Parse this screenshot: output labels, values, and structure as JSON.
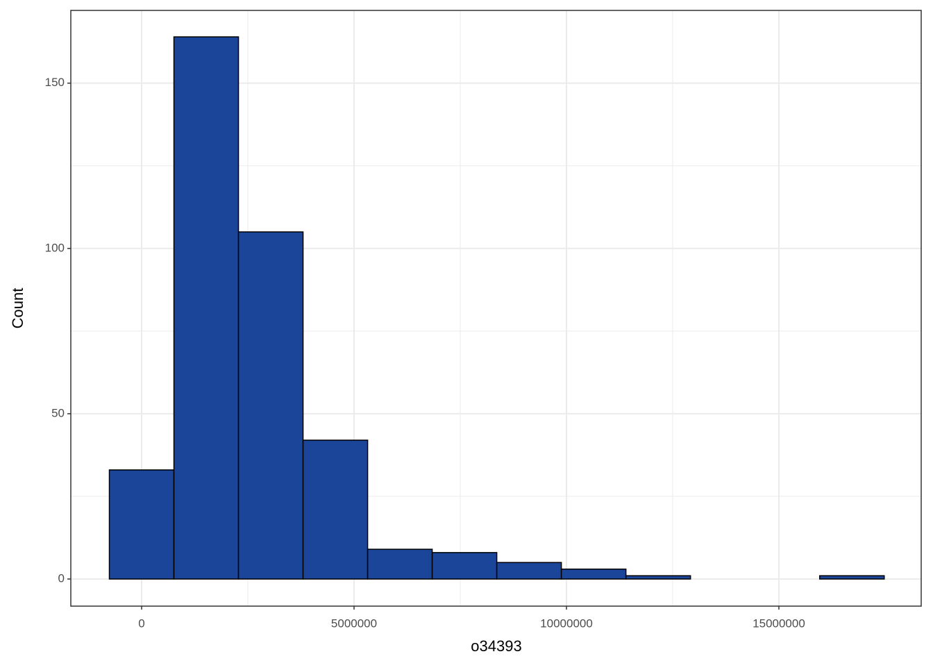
{
  "chart_data": {
    "type": "histogram",
    "x_label": "o34393",
    "y_label": "Count",
    "bins": [
      -760000,
      760000,
      2280000,
      3800000,
      5320000,
      6840000,
      8360000,
      9880000,
      11400000,
      12920000,
      14440000,
      15960000,
      17480000
    ],
    "values": [
      33,
      164,
      105,
      42,
      9,
      8,
      5,
      3,
      1,
      0,
      0,
      1
    ],
    "color": "#1a4599",
    "xlim": [
      -1667000,
      18350000
    ],
    "xticks": [
      0,
      5000000,
      10000000,
      15000000
    ],
    "ylim": [
      -8.2,
      172
    ],
    "yticks": [
      0,
      50,
      100,
      150
    ],
    "grid": true
  }
}
